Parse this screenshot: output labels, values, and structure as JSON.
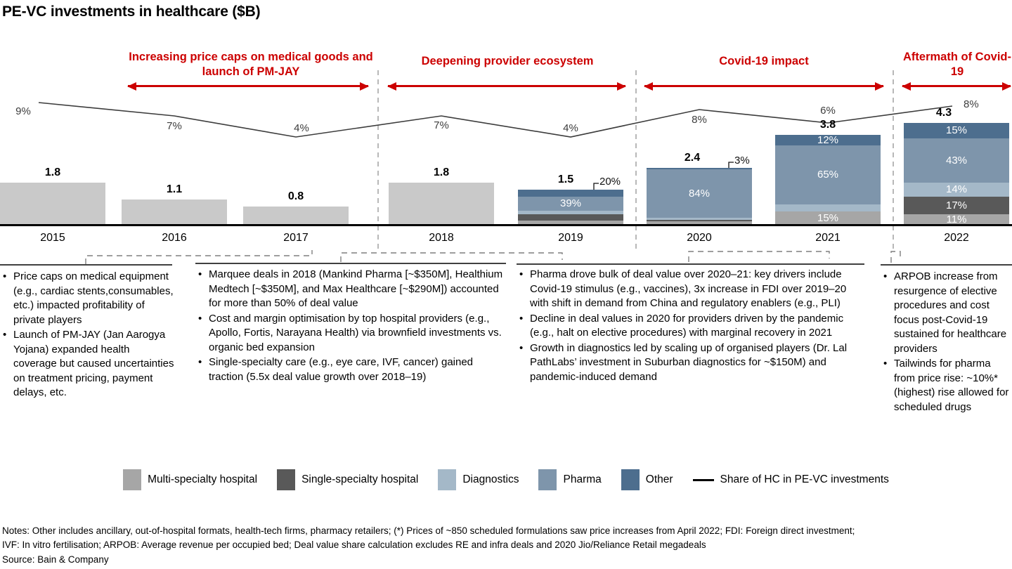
{
  "title": "PE-VC investments in healthcare ($B)",
  "periods": [
    {
      "label": "Increasing price caps on medical goods and launch of PM-JAY"
    },
    {
      "label": "Deepening provider ecosystem"
    },
    {
      "label": "Covid-19 impact"
    },
    {
      "label": "Aftermath of Covid-19"
    }
  ],
  "chart_data": {
    "type": "bar",
    "stacked": true,
    "unit": "$B",
    "title": "PE-VC investments in healthcare ($B)",
    "categories": [
      "2015",
      "2016",
      "2017",
      "2018",
      "2019",
      "2020",
      "2021",
      "2022"
    ],
    "totals": [
      1.8,
      1.1,
      0.8,
      1.8,
      1.5,
      2.4,
      3.8,
      4.3
    ],
    "bars": [
      {
        "year": "2015",
        "total": "1.8",
        "segments": [
          {
            "name": "Multi-specialty hospital",
            "pct": 100,
            "color": "total_bar"
          }
        ]
      },
      {
        "year": "2016",
        "total": "1.1",
        "segments": [
          {
            "name": "Multi-specialty hospital",
            "pct": 100,
            "color": "total_bar"
          }
        ]
      },
      {
        "year": "2017",
        "total": "0.8",
        "segments": [
          {
            "name": "Multi-specialty hospital",
            "pct": 100,
            "color": "total_bar"
          }
        ]
      },
      {
        "year": "2018",
        "total": "1.8",
        "segments": [
          {
            "name": "Multi-specialty hospital",
            "pct": 100,
            "color": "total_bar"
          }
        ]
      },
      {
        "year": "2019",
        "total": "1.5",
        "segments": [
          {
            "name": "Other",
            "pct": 20,
            "label": "20%",
            "callout": true
          },
          {
            "name": "Pharma",
            "pct": 39,
            "label": "39%"
          },
          {
            "name": "Diagnostics",
            "pct": 9
          },
          {
            "name": "Single-specialty hospital",
            "pct": 17
          },
          {
            "name": "Multi-specialty hospital",
            "pct": 15
          }
        ]
      },
      {
        "year": "2020",
        "total": "2.4",
        "segments": [
          {
            "name": "Other",
            "pct": 3,
            "label": "3%",
            "callout": true
          },
          {
            "name": "Pharma",
            "pct": 84,
            "label": "84%"
          },
          {
            "name": "Diagnostics",
            "pct": 4
          },
          {
            "name": "Single-specialty hospital",
            "pct": 2
          },
          {
            "name": "Multi-specialty hospital",
            "pct": 7
          }
        ]
      },
      {
        "year": "2021",
        "total": "3.8",
        "segments": [
          {
            "name": "Other",
            "pct": 12,
            "label": "12%"
          },
          {
            "name": "Pharma",
            "pct": 65,
            "label": "65%"
          },
          {
            "name": "Diagnostics",
            "pct": 8
          },
          {
            "name": "Multi-specialty hospital",
            "pct": 15,
            "label": "15%"
          }
        ]
      },
      {
        "year": "2022",
        "total": "4.3",
        "segments": [
          {
            "name": "Other",
            "pct": 15,
            "label": "15%"
          },
          {
            "name": "Pharma",
            "pct": 43,
            "label": "43%"
          },
          {
            "name": "Diagnostics",
            "pct": 14,
            "label": "14%"
          },
          {
            "name": "Single-specialty hospital",
            "pct": 17,
            "label": "17%"
          },
          {
            "name": "Multi-specialty hospital",
            "pct": 11,
            "label": "11%"
          }
        ]
      }
    ],
    "line": {
      "name": "Share of HC in PE-VC investments",
      "values_pct": [
        9,
        7,
        4,
        7,
        4,
        8,
        6,
        8
      ],
      "labels": [
        "9%",
        "7%",
        "4%",
        "7%",
        "4%",
        "8%",
        "6%",
        "8%"
      ]
    }
  },
  "columns": [
    {
      "bullets": [
        "Price caps on medical equipment (e.g., cardiac stents,consumables, etc.) impacted profitability of private players",
        "Launch of PM-JAY (Jan Aarogya Yojana) expanded health coverage but caused uncertainties on treatment pricing, payment delays, etc."
      ]
    },
    {
      "bullets": [
        "Marquee deals in 2018 (Mankind Pharma [~$350M], Healthium Medtech [~$350M], and Max Healthcare [~$290M]) accounted for more than 50% of deal value",
        "Cost and margin optimisation by top hospital providers (e.g., Apollo, Fortis, Narayana Health) via brownfield investments vs. organic bed expansion",
        "Single-specialty care (e.g., eye care, IVF, cancer) gained traction (5.5x deal value growth over 2018–19)"
      ]
    },
    {
      "bullets": [
        "Pharma drove bulk of deal value over 2020–21: key drivers include Covid-19 stimulus (e.g., vaccines), 3x increase in FDI over 2019–20 with shift in demand from China and regulatory enablers (e.g., PLI)",
        "Decline in deal values in 2020 for providers driven by the pandemic (e.g., halt on elective procedures) with marginal recovery in 2021",
        "Growth in diagnostics led by scaling up of organised players (Dr. Lal PathLabs’ investment in Suburban diagnostics for ~$150M) and pandemic-induced demand"
      ]
    },
    {
      "bullets": [
        "ARPOB increase from resurgence of elective procedures and cost focus post-Covid-19 sustained for healthcare providers",
        "Tailwinds for pharma from price rise: ~10%* (highest) rise allowed for scheduled drugs"
      ]
    }
  ],
  "legend": {
    "items": [
      {
        "label": "Multi-specialty hospital",
        "type": "swatch",
        "color_key": "Multi-specialty hospital"
      },
      {
        "label": "Single-specialty hospital",
        "type": "swatch",
        "color_key": "Single-specialty hospital"
      },
      {
        "label": "Diagnostics",
        "type": "swatch",
        "color_key": "Diagnostics"
      },
      {
        "label": "Pharma",
        "type": "swatch",
        "color_key": "Pharma"
      },
      {
        "label": "Other",
        "type": "swatch",
        "color_key": "Other"
      },
      {
        "label": "Share of HC in PE-VC investments",
        "type": "line"
      }
    ]
  },
  "notes": {
    "lines": [
      "Notes: Other includes ancillary, out-of-hospital formats, health-tech firms, pharmacy retailers; (*) Prices of ~850 scheduled formulations saw price increases from April 2022; FDI: Foreign direct investment;",
      "IVF: In vitro fertilisation; ARPOB: Average revenue per occupied bed; Deal value share calculation excludes RE and infra deals and 2020 Jio/Reliance Retail megadeals",
      "Source: Bain & Company"
    ]
  },
  "colors": {
    "red": "#cc0000",
    "total_bar": "#c9c9c9",
    "Multi-specialty hospital": "#a6a6a6",
    "Single-specialty hospital": "#595959",
    "Diagnostics": "#a4b8c8",
    "Pharma": "#7e95ab",
    "Other": "#4d6e8e",
    "line": "#3c3c3c",
    "divider": "#9a9a9a",
    "connector": "#7f7f7f"
  }
}
